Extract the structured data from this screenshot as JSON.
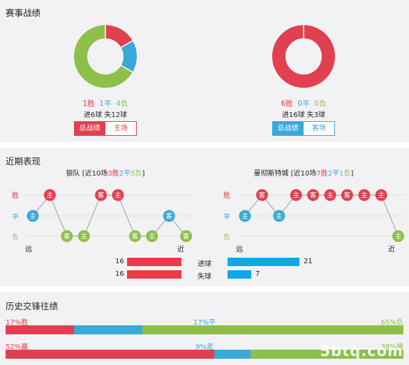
{
  "colors": {
    "win": "#e04050",
    "draw": "#3aa8d8",
    "loss": "#8cc04a",
    "bar_red": "#ee3a48",
    "bar_blue": "#0aaae8"
  },
  "sections": {
    "record_title": "赛事战绩",
    "recent_title": "近期表现",
    "history_title": "历史交锋往绩"
  },
  "record": {
    "left": {
      "win": 1,
      "draw": 1,
      "loss": 4,
      "win_text": "1胜",
      "draw_text": "1平",
      "loss_text": "4负",
      "goals_text": "进6球 失12球",
      "tabs": [
        {
          "label": "总战绩",
          "active": true
        },
        {
          "label": "主场",
          "active": false
        }
      ]
    },
    "right": {
      "win": 6,
      "draw": 0,
      "loss": 0,
      "win_text": "6胜",
      "draw_text": "0平",
      "loss_text": "0负",
      "goals_text": "进16球 失3球",
      "tabs": [
        {
          "label": "总战绩",
          "active": true
        },
        {
          "label": "客场",
          "active": false
        }
      ]
    }
  },
  "recent": {
    "y_labels": {
      "win": "胜",
      "draw": "平",
      "loss": "负"
    },
    "far": "远",
    "near": "近",
    "left": {
      "team": "狼队",
      "summary_pre": "[近10场",
      "wins": "3胜",
      "draws": "2平",
      "losses": "5负",
      "summary_post": "]",
      "games": [
        {
          "r": "D",
          "v": "主"
        },
        {
          "r": "W",
          "v": "主"
        },
        {
          "r": "L",
          "v": "客"
        },
        {
          "r": "L",
          "v": "主"
        },
        {
          "r": "W",
          "v": "客"
        },
        {
          "r": "W",
          "v": "主"
        },
        {
          "r": "L",
          "v": "客"
        },
        {
          "r": "L",
          "v": "主"
        },
        {
          "r": "D",
          "v": "客"
        },
        {
          "r": "L",
          "v": "客"
        }
      ]
    },
    "right": {
      "team": "曼彻斯特城",
      "summary_pre": "[近10场",
      "wins": "7胜",
      "draws": "2平",
      "losses": "1负",
      "summary_post": "]",
      "games": [
        {
          "r": "D",
          "v": "主"
        },
        {
          "r": "W",
          "v": "客"
        },
        {
          "r": "D",
          "v": "主"
        },
        {
          "r": "W",
          "v": "主"
        },
        {
          "r": "W",
          "v": "客"
        },
        {
          "r": "W",
          "v": "主"
        },
        {
          "r": "W",
          "v": "客"
        },
        {
          "r": "W",
          "v": "主"
        },
        {
          "r": "W",
          "v": "主"
        },
        {
          "r": "L",
          "v": "主"
        }
      ]
    },
    "goals": {
      "scored_label": "进球",
      "conceded_label": "失球",
      "left_scored": 16,
      "left_conceded": 16,
      "right_scored": 21,
      "right_conceded": 7,
      "max": 21
    }
  },
  "history": {
    "row1": {
      "left_text": "17%胜",
      "mid_text": "17%平",
      "right_text": "65%负",
      "segments": [
        17,
        17,
        65
      ]
    },
    "row2": {
      "left_text": "52%赢",
      "mid_text": "9%走",
      "right_text": "38%输",
      "segments": [
        52,
        9,
        38
      ]
    }
  },
  "watermark": "5btq.com"
}
